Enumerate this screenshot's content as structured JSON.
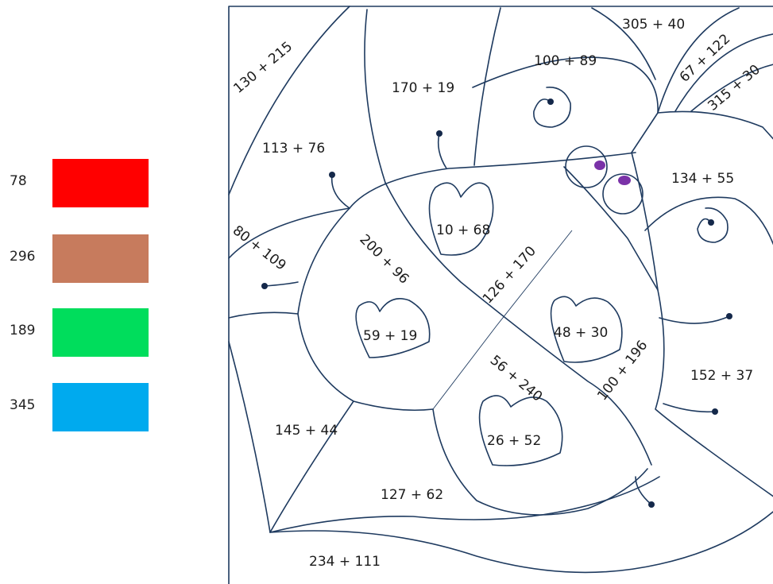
{
  "legend": [
    {
      "value": "78",
      "color": "#ff0000"
    },
    {
      "value": "296",
      "color": "#c77b5d"
    },
    {
      "value": "189",
      "color": "#00dd5c"
    },
    {
      "value": "345",
      "color": "#00aaee"
    }
  ],
  "regions": {
    "r130_215": "130 + 215",
    "r170_19": "170 + 19",
    "r100_89": "100 + 89",
    "r305_40": "305 + 40",
    "r67_122": "67 + 122",
    "r315_30": "315 + 30",
    "r113_76": "113 + 76",
    "r134_55": "134 + 55",
    "r10_68": "10 + 68",
    "r80_109": "80 + 109",
    "r200_96": "200 + 96",
    "r126_170": "126 + 170",
    "r59_19": "59 + 19",
    "r48_30": "48 + 30",
    "r100_196": "100 + 196",
    "r152_37": "152 + 37",
    "r56_240": "56 + 240",
    "r145_44": "145 + 44",
    "r26_52": "26 + 52",
    "r127_62": "127 + 62",
    "r234_111": "234 + 111"
  }
}
